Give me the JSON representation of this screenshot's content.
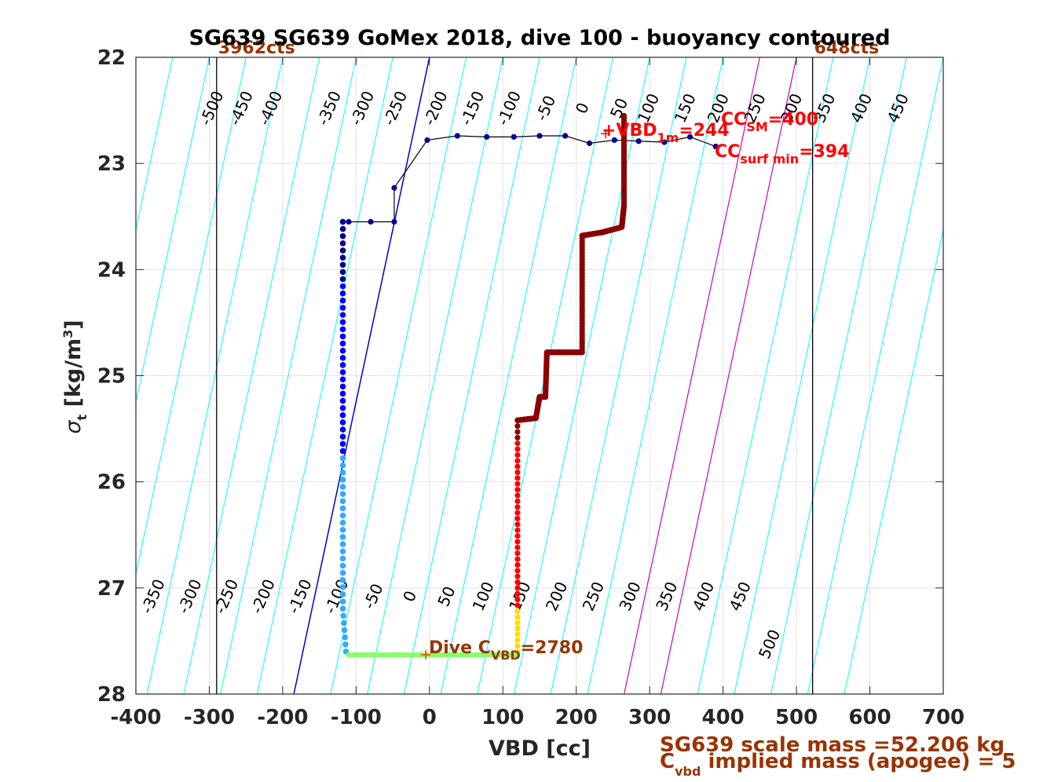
{
  "chart_data": {
    "type": "scatter",
    "title": "SG639 SG639 GoMex 2018, dive 100 - buoyancy contoured",
    "xlabel": "VBD [cc]",
    "ylabel_main": "σ",
    "ylabel_sub": "t",
    "ylabel_unit_pre": " [kg/m",
    "ylabel_unit_sup": "3",
    "ylabel_unit_post": "]",
    "xlim": [
      -400,
      700
    ],
    "ylim": [
      28,
      22
    ],
    "y_reversed": true,
    "grid": true,
    "xticks": [
      -400,
      -300,
      -200,
      -100,
      0,
      100,
      200,
      300,
      400,
      500,
      600,
      700
    ],
    "xtick_labels": [
      "-400",
      "-300",
      "-200",
      "-100",
      "0",
      "100",
      "200",
      "300",
      "400",
      "500",
      "600",
      "700"
    ],
    "yticks": [
      22,
      23,
      24,
      25,
      26,
      27,
      28
    ],
    "ytick_labels": [
      "22",
      "23",
      "24",
      "25",
      "26",
      "27",
      "28"
    ],
    "contours": {
      "color": "#00ffff",
      "zero_color": "#0000cc",
      "highlight_color": "#cc00cc",
      "highlight_levels": [
        450,
        500
      ],
      "slope_vbd_per_sigma": -30.8,
      "intercept_vbd_at_sigma_22": [
        -650,
        -600,
        -550,
        -500,
        -450,
        -400,
        -350,
        -300,
        -250,
        -200,
        -150,
        -100,
        -50,
        0,
        50,
        100,
        150,
        200,
        250,
        300,
        350,
        400,
        450,
        500,
        550,
        600,
        650,
        700,
        750
      ],
      "top_label_sigma": 22.5,
      "top_labels": [
        {
          "text": "-500",
          "x": -290
        },
        {
          "text": "-450",
          "x": -250
        },
        {
          "text": "-400",
          "x": -210
        },
        {
          "text": "-350",
          "x": -130
        },
        {
          "text": "-300",
          "x": -85
        },
        {
          "text": "-250",
          "x": -40
        },
        {
          "text": "-200",
          "x": 15
        },
        {
          "text": "-150",
          "x": 65
        },
        {
          "text": "-100",
          "x": 115
        },
        {
          "text": "-50",
          "x": 165
        },
        {
          "text": "0",
          "x": 215
        },
        {
          "text": "50",
          "x": 265
        },
        {
          "text": "100",
          "x": 305
        },
        {
          "text": "150",
          "x": 355
        },
        {
          "text": "200",
          "x": 400
        },
        {
          "text": "250",
          "x": 450
        },
        {
          "text": "300",
          "x": 500
        },
        {
          "text": "350",
          "x": 545
        },
        {
          "text": "400",
          "x": 595
        },
        {
          "text": "450",
          "x": 645
        }
      ],
      "bottom_label_sigma": 27.1,
      "bottom_labels": [
        {
          "text": "-350",
          "x": -370
        },
        {
          "text": "-300",
          "x": -320
        },
        {
          "text": "-250",
          "x": -270
        },
        {
          "text": "-200",
          "x": -220
        },
        {
          "text": "-150",
          "x": -170
        },
        {
          "text": "-100",
          "x": -120
        },
        {
          "text": "-50",
          "x": -70
        },
        {
          "text": "0",
          "x": -20
        },
        {
          "text": "50",
          "x": 30
        },
        {
          "text": "100",
          "x": 80
        },
        {
          "text": "150",
          "x": 130
        },
        {
          "text": "200",
          "x": 180
        },
        {
          "text": "250",
          "x": 230
        },
        {
          "text": "300",
          "x": 280
        },
        {
          "text": "350",
          "x": 330
        },
        {
          "text": "400",
          "x": 380
        },
        {
          "text": "450",
          "x": 430
        },
        {
          "text": "500",
          "x": 470,
          "sigma": 27.55
        }
      ]
    },
    "vbd_limit_lines": [
      {
        "x": -290,
        "label": "3962cts"
      },
      {
        "x": 522,
        "label": "648cts"
      }
    ],
    "dive_track": [
      [
        -110,
        23.55
      ],
      [
        -80,
        23.55
      ],
      [
        -48,
        23.55
      ],
      [
        -48,
        23.23
      ],
      [
        -3,
        22.78
      ],
      [
        38,
        22.74
      ],
      [
        78,
        22.75
      ],
      [
        115,
        22.75
      ],
      [
        150,
        22.74
      ],
      [
        185,
        22.74
      ],
      [
        218,
        22.81
      ],
      [
        252,
        22.78
      ],
      [
        285,
        22.79
      ],
      [
        320,
        22.8
      ],
      [
        355,
        22.75
      ],
      [
        390,
        22.84
      ]
    ],
    "descent": {
      "color_top": "#00008b",
      "color_mid": "#0000ff",
      "color_bottom": "#33aaff",
      "x": -118,
      "sigma_start": 23.55,
      "sigma_end": 27.6
    },
    "bottom": {
      "color": "#88ff66",
      "sigma": 27.63,
      "x_start": -110,
      "x_end": 118
    },
    "climb_steps": [
      [
        120,
        27.6
      ],
      [
        120,
        25.42
      ],
      [
        145,
        25.4
      ],
      [
        150,
        25.2
      ],
      [
        158,
        25.2
      ],
      [
        160,
        24.78
      ],
      [
        208,
        24.78
      ],
      [
        208,
        23.68
      ],
      [
        235,
        23.65
      ],
      [
        262,
        23.6
      ],
      [
        265,
        23.4
      ],
      [
        265,
        22.55
      ]
    ],
    "climb_colors": {
      "bottom": "#ffdd00",
      "mid": "#ff0000",
      "top": "#8b0000"
    },
    "markers": [
      {
        "x": 240,
        "y": 22.72,
        "color": "#ff0000"
      },
      {
        "x": -5,
        "y": 27.63,
        "color": "#ff3300"
      }
    ],
    "annotations": {
      "vbd1m_pre": "+VBD",
      "vbd1m_sub": "1m",
      "vbd1m_post": "=244",
      "ccsm_pre": "CC",
      "ccsm_sub": "SM",
      "ccsm_post": "=400",
      "ccsurf_pre": "CC",
      "ccsurf_sub": "surf min",
      "ccsurf_post": "=394",
      "dive_pre": "Dive C",
      "dive_sub": "VBD",
      "dive_post": "=2780",
      "scale_mass": "SG639 scale mass =52.206 kg",
      "implied_pre": "C",
      "implied_sub": "vbd",
      "implied_post": " implied mass (apogee) = 5"
    }
  }
}
